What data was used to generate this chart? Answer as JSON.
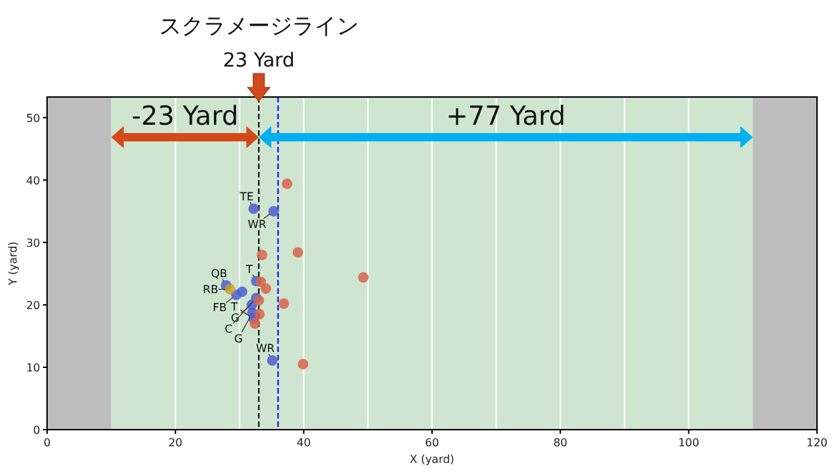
{
  "chart_data": {
    "type": "scatter",
    "xlabel": "X (yard)",
    "ylabel": "Y (yard)",
    "xlim": [
      0,
      120
    ],
    "ylim": [
      0,
      53.3
    ],
    "xticks": [
      0,
      20,
      40,
      60,
      80,
      100,
      120
    ],
    "yticks": [
      0,
      10,
      20,
      30,
      40,
      50
    ],
    "marker": "circle",
    "bands": [
      {
        "axis": "x",
        "from": 0,
        "to": 10,
        "color": "#bdbdbd"
      },
      {
        "axis": "x",
        "from": 10,
        "to": 110,
        "color": "#cfe5cf"
      },
      {
        "axis": "x",
        "from": 110,
        "to": 120,
        "color": "#bdbdbd"
      }
    ],
    "ref_lines": [
      {
        "axis": "x",
        "value": 20,
        "color": "#ffffff"
      },
      {
        "axis": "x",
        "value": 30,
        "color": "#ffffff"
      },
      {
        "axis": "x",
        "value": 40,
        "color": "#ffffff"
      },
      {
        "axis": "x",
        "value": 50,
        "color": "#ffffff"
      },
      {
        "axis": "x",
        "value": 60,
        "color": "#ffffff"
      },
      {
        "axis": "x",
        "value": 70,
        "color": "#ffffff"
      },
      {
        "axis": "x",
        "value": 80,
        "color": "#ffffff"
      },
      {
        "axis": "x",
        "value": 90,
        "color": "#ffffff"
      },
      {
        "axis": "x",
        "value": 100,
        "color": "#ffffff"
      },
      {
        "axis": "x",
        "value": 33,
        "color": "#000000",
        "line_style": "dashed",
        "label": "23 Yard"
      },
      {
        "axis": "x",
        "value": 36,
        "color": "#0000ff",
        "line_style": "dashed"
      }
    ],
    "series": [
      {
        "color": "#4a5fd0",
        "x": [
          32.2,
          35.3,
          35.1,
          27.9,
          30.4,
          32.6,
          31.9,
          32.6,
          32.0,
          32.2,
          29.5
        ],
        "values": [
          35.4,
          35.0,
          11.1,
          23.1,
          22.1,
          23.8,
          20.0,
          21.1,
          18.7,
          17.8,
          21.6
        ]
      },
      {
        "color": "#d9644c",
        "x": [
          37.4,
          33.5,
          39.1,
          49.3,
          33.3,
          34.1,
          36.9,
          33.0,
          33.1,
          32.4,
          39.9
        ],
        "values": [
          39.4,
          28.0,
          28.4,
          24.4,
          23.7,
          22.6,
          20.2,
          20.7,
          18.5,
          17.0,
          10.5
        ]
      },
      {
        "color": "#c9a227",
        "x": [
          28.5
        ],
        "values": [
          22.5
        ]
      }
    ],
    "annotations": [
      "スクラメージライン",
      "-23 Yard",
      "+77 Yard",
      {
        "text": "TE",
        "x": 32.2,
        "y": 35.4
      },
      {
        "text": "WR",
        "x": 35.3,
        "y": 35.0
      },
      {
        "text": "WR",
        "x": 35.1,
        "y": 11.1
      },
      {
        "text": "QB",
        "x": 27.9,
        "y": 23.1
      },
      {
        "text": "RB",
        "x": 28.5,
        "y": 22.5
      },
      {
        "text": "FB",
        "x": 29.5,
        "y": 21.6
      },
      {
        "text": "T",
        "x": 32.6,
        "y": 23.8
      },
      {
        "text": "G",
        "x": 31.9,
        "y": 20.0
      },
      {
        "text": "C",
        "x": 32.6,
        "y": 21.1
      },
      {
        "text": "G",
        "x": 32.0,
        "y": 18.7
      },
      {
        "text": "T",
        "x": 32.2,
        "y": 17.8
      }
    ]
  }
}
